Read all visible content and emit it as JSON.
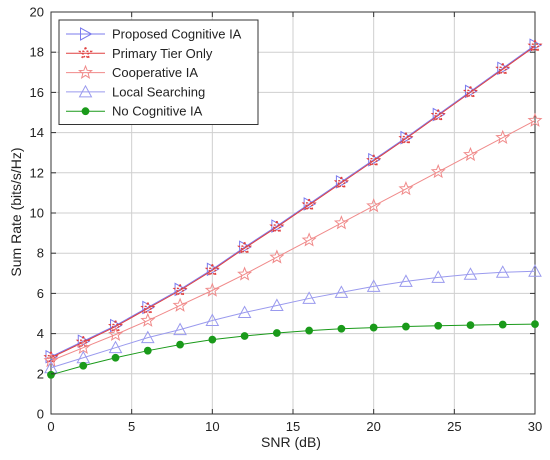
{
  "chart_data": {
    "type": "line",
    "title": "",
    "xlabel": "SNR (dB)",
    "ylabel": "Sum Rate (bits/s/Hz)",
    "xlim": [
      0,
      30
    ],
    "ylim": [
      0,
      20
    ],
    "xticks": [
      "0",
      "5",
      "10",
      "15",
      "20",
      "25",
      "30"
    ],
    "yticks": [
      "0",
      "2",
      "4",
      "6",
      "8",
      "10",
      "12",
      "14",
      "16",
      "18",
      "20"
    ],
    "grid": true,
    "legend_position": "top-left",
    "x": [
      0,
      2,
      4,
      6,
      8,
      10,
      12,
      14,
      16,
      18,
      20,
      22,
      24,
      26,
      28,
      30
    ],
    "series": [
      {
        "name": "Proposed Cognitive IA",
        "color": "#7b7bee",
        "marker": "triangle-right",
        "values": [
          2.85,
          3.62,
          4.4,
          5.3,
          6.2,
          7.2,
          8.3,
          9.35,
          10.45,
          11.55,
          12.65,
          13.75,
          14.9,
          16.05,
          17.2,
          18.35
        ]
      },
      {
        "name": "Primary Tier Only",
        "color": "#e04040",
        "marker": "dashed-star",
        "values": [
          2.8,
          3.57,
          4.35,
          5.25,
          6.15,
          7.15,
          8.25,
          9.3,
          10.4,
          11.5,
          12.6,
          13.7,
          14.85,
          16.0,
          17.15,
          18.3
        ]
      },
      {
        "name": "Cooperative IA",
        "color": "#f08a8a",
        "marker": "star",
        "values": [
          2.65,
          3.3,
          3.95,
          4.65,
          5.4,
          6.15,
          6.95,
          7.8,
          8.65,
          9.5,
          10.35,
          11.2,
          12.05,
          12.9,
          13.75,
          14.6
        ]
      },
      {
        "name": "Local Searching",
        "color": "#9a9aee",
        "marker": "triangle-up",
        "values": [
          2.3,
          2.8,
          3.3,
          3.8,
          4.2,
          4.65,
          5.05,
          5.4,
          5.75,
          6.05,
          6.35,
          6.6,
          6.8,
          6.95,
          7.05,
          7.1
        ]
      },
      {
        "name": "No Cognitive IA",
        "color": "#1a9a1a",
        "marker": "circle-filled",
        "values": [
          1.95,
          2.4,
          2.8,
          3.15,
          3.45,
          3.7,
          3.88,
          4.03,
          4.15,
          4.24,
          4.3,
          4.35,
          4.39,
          4.42,
          4.45,
          4.47
        ]
      }
    ]
  }
}
